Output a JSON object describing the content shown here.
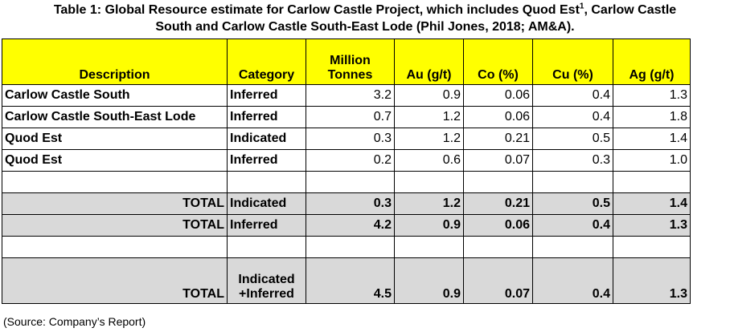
{
  "title": {
    "line1_pre": "Table 1: Global Resource estimate for Carlow Castle Project, which includes Quod Est",
    "line1_sup": "1",
    "line1_post": ", Carlow Castle",
    "line2": "South and Carlow Castle South-East Lode (Phil Jones, 2018; AM&A)."
  },
  "columns": {
    "description": "Description",
    "category": "Category",
    "tonnes_line1": "Million",
    "tonnes_line2": "Tonnes",
    "au": "Au (g/t)",
    "co": "Co (%)",
    "cu": "Cu (%)",
    "ag": "Ag (g/t)"
  },
  "rows": [
    {
      "description": "Carlow Castle South",
      "category": "Inferred",
      "tonnes": "3.2",
      "au": "0.9",
      "co": "0.06",
      "cu": "0.4",
      "ag": "1.3"
    },
    {
      "description": "Carlow Castle South-East Lode",
      "category": "Inferred",
      "tonnes": "0.7",
      "au": "1.2",
      "co": "0.06",
      "cu": "0.4",
      "ag": "1.8"
    },
    {
      "description": "Quod Est",
      "category": "Indicated",
      "tonnes": "0.3",
      "au": "1.2",
      "co": "0.21",
      "cu": "0.5",
      "ag": "1.4"
    },
    {
      "description": "Quod Est",
      "category": "Inferred",
      "tonnes": "0.2",
      "au": "0.6",
      "co": "0.07",
      "cu": "0.3",
      "ag": "1.0"
    }
  ],
  "totals": [
    {
      "label": "TOTAL",
      "category": "Indicated",
      "tonnes": "0.3",
      "au": "1.2",
      "co": "0.21",
      "cu": "0.5",
      "ag": "1.4"
    },
    {
      "label": "TOTAL",
      "category": "Inferred",
      "tonnes": "4.2",
      "au": "0.9",
      "co": "0.06",
      "cu": "0.4",
      "ag": "1.3"
    }
  ],
  "grand_total": {
    "label": "TOTAL",
    "category_line1": "Indicated",
    "category_line2": "+Inferred",
    "tonnes": "4.5",
    "au": "0.9",
    "co": "0.07",
    "cu": "0.4",
    "ag": "1.3"
  },
  "source": "(Source: Company’s Report)"
}
